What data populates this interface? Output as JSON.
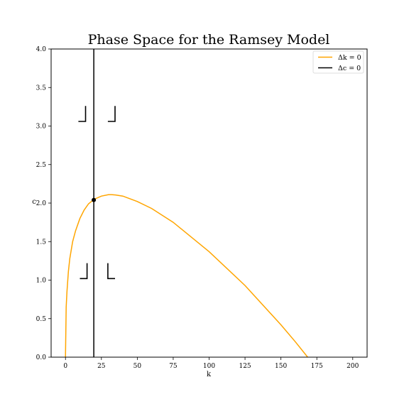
{
  "chart_data": {
    "type": "line",
    "title": "Phase Space for the Ramsey Model",
    "xlabel": "k",
    "ylabel": "c",
    "xlim": [
      -10,
      210
    ],
    "ylim": [
      0,
      4
    ],
    "x_ticks": [
      0,
      25,
      50,
      75,
      100,
      125,
      150,
      175,
      200
    ],
    "x_tick_labels": [
      "0",
      "25",
      "50",
      "75",
      "100",
      "125",
      "150",
      "175",
      "200"
    ],
    "y_ticks": [
      0,
      0.5,
      1,
      1.5,
      2,
      2.5,
      3,
      3.5,
      4
    ],
    "y_tick_labels": [
      "0.0",
      "0.5",
      "1.0",
      "1.5",
      "2.0",
      "2.5",
      "3.0",
      "3.5",
      "4.0"
    ],
    "grid": false,
    "legend_position": "top-right",
    "series": [
      {
        "name": "Δk = 0",
        "color": "#FFA500",
        "x": [
          0,
          0.5,
          1,
          2,
          3,
          5,
          7,
          10,
          13,
          16,
          20,
          25,
          30,
          32,
          35,
          40,
          50,
          60,
          75,
          100,
          125,
          150,
          160,
          168.6
        ],
        "y": [
          0,
          0.65,
          0.85,
          1.11,
          1.28,
          1.5,
          1.64,
          1.8,
          1.91,
          1.99,
          2.05,
          2.09,
          2.11,
          2.11,
          2.105,
          2.09,
          2.02,
          1.93,
          1.75,
          1.37,
          0.93,
          0.42,
          0.2,
          0
        ]
      },
      {
        "name": "Δc = 0",
        "color": "#000000",
        "x": [
          19.7,
          19.7
        ],
        "y": [
          0,
          4
        ]
      }
    ],
    "steady_state": {
      "x": 19.7,
      "y": 2.04
    },
    "direction_markers": [
      {
        "quadrant": "upper-left",
        "x": 14,
        "y": 3.06,
        "dx": -5,
        "dy": 0.2
      },
      {
        "quadrant": "upper-right",
        "x": 34.5,
        "y": 3.06,
        "dx": -5,
        "dy": 0.2
      },
      {
        "quadrant": "lower-left",
        "x": 15,
        "y": 1.02,
        "dx": -5,
        "dy": 0.2
      },
      {
        "quadrant": "lower-right",
        "x": 29.5,
        "y": 1.02,
        "dx": 5,
        "dy": 0.2
      }
    ]
  }
}
